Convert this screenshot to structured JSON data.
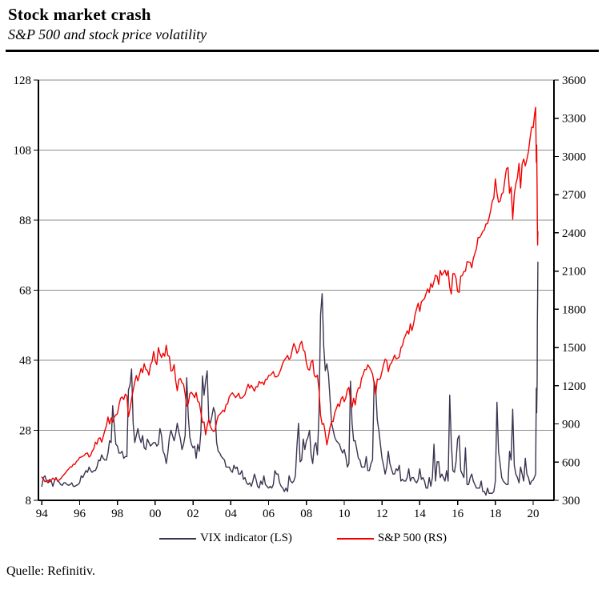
{
  "header": {
    "title": "Stock market crash",
    "subtitle": "S&P 500 and stock price volatility"
  },
  "source": "Quelle: Refinitiv.",
  "legend": [
    {
      "label": "VIX indicator (LS)",
      "color": "#3c3450"
    },
    {
      "label": "S&P 500 (RS)",
      "color": "#f20000"
    }
  ],
  "colors": {
    "grid": "#8c8c8c",
    "axis": "#000000",
    "text": "#000000",
    "background": "#ffffff"
  },
  "chart_data": {
    "type": "line",
    "title": "Stock market crash",
    "subtitle": "S&P 500 and stock price volatility",
    "grid": "horizontal",
    "legend_position": "bottom",
    "x_axis": {
      "range": [
        1993.82,
        2021.1
      ],
      "tick_years": [
        1994,
        1996,
        1998,
        2000,
        2002,
        2004,
        2006,
        2008,
        2010,
        2012,
        2014,
        2016,
        2018,
        2020
      ],
      "tick_labels": [
        "94",
        "96",
        "98",
        "00",
        "02",
        "04",
        "06",
        "08",
        "10",
        "12",
        "14",
        "16",
        "18",
        "20"
      ]
    },
    "y_axis_left": {
      "series": "VIX indicator",
      "range": [
        8,
        128
      ],
      "ticks": [
        8,
        28,
        48,
        68,
        88,
        108,
        128
      ]
    },
    "y_axis_right": {
      "series": "S&P 500",
      "range": [
        300,
        3600
      ],
      "ticks": [
        300,
        600,
        900,
        1200,
        1500,
        1800,
        2100,
        2400,
        2700,
        3000,
        3300,
        3600
      ]
    },
    "x": {
      "monthly_start": 1994,
      "monthly_count": 312,
      "extra": [
        2020.0,
        2020.08,
        2020.13,
        2020.165,
        2020.185,
        2020.21,
        2020.22,
        2020.235,
        2020.25
      ]
    },
    "series": [
      {
        "name": "VIX indicator (LS)",
        "axis": "left",
        "color": "#3c3450",
        "values": [
          12,
          14.5,
          15,
          13.5,
          13,
          14,
          13.5,
          12,
          13.5,
          14.5,
          13.5,
          13.2,
          12.5,
          12.3,
          13,
          13,
          12.5,
          12.3,
          12.5,
          13,
          12,
          12,
          12.3,
          12.5,
          13,
          15,
          14.5,
          15.5,
          16.5,
          16,
          17.5,
          16.5,
          16,
          16.5,
          16.5,
          17.5,
          19.5,
          19.3,
          21,
          20,
          19.5,
          19.5,
          21.5,
          25,
          24.5,
          35,
          29.5,
          24,
          23.5,
          21.5,
          21.5,
          22,
          20,
          20.5,
          20.5,
          39.5,
          41,
          45.5,
          30,
          24.5,
          26.5,
          28.5,
          26,
          24.5,
          26.5,
          23,
          22.5,
          25.5,
          24.5,
          23.5,
          24,
          24.5,
          24.5,
          23.5,
          24,
          28.5,
          26.5,
          22,
          21,
          18.5,
          21.5,
          26,
          28,
          26.5,
          25,
          27,
          30,
          27.5,
          25.5,
          22.5,
          24,
          26.5,
          43,
          32,
          26,
          24,
          23,
          23.5,
          20,
          24,
          22,
          27.5,
          43.5,
          38,
          42,
          45,
          31,
          30,
          32,
          34.5,
          33,
          24.5,
          22,
          21.5,
          20.5,
          20,
          19.5,
          17.5,
          17.5,
          17.5,
          16.5,
          16,
          18,
          17,
          17.5,
          15.5,
          15.5,
          16.5,
          14,
          14.5,
          13,
          12.5,
          13,
          12,
          13.5,
          15.5,
          14,
          12,
          11.5,
          13.5,
          12.5,
          15,
          12.5,
          12,
          11.5,
          12,
          11.5,
          12.5,
          16.5,
          15.5,
          15.5,
          13,
          12,
          11.5,
          10.5,
          11.5,
          10.5,
          15,
          13.5,
          13,
          13.5,
          15,
          23.5,
          30,
          19,
          19.5,
          25.5,
          22.5,
          25,
          26,
          28,
          21,
          18.5,
          23.5,
          24.5,
          21,
          33,
          61,
          67,
          52,
          45,
          47,
          44,
          37,
          30,
          28,
          26,
          25,
          24.5,
          24,
          22.5,
          21.5,
          22.5,
          20.5,
          17.5,
          18.5,
          42,
          30,
          25,
          25,
          22.5,
          20,
          19.5,
          17.5,
          17.5,
          17.5,
          20.5,
          16.5,
          16.5,
          18.5,
          19.5,
          42,
          40,
          31,
          28,
          24,
          20,
          18,
          15.5,
          17.5,
          22,
          18.5,
          17,
          15.5,
          15.5,
          17,
          16.5,
          18,
          13.5,
          14,
          13.5,
          13.5,
          14.5,
          17,
          13.5,
          14.5,
          14.5,
          13.5,
          13,
          14,
          17,
          14,
          14.5,
          13.5,
          11.5,
          11.5,
          14.5,
          12,
          14.5,
          24,
          13.5,
          19,
          19,
          14.5,
          15.5,
          14.5,
          13.5,
          16.5,
          13.5,
          38,
          24.5,
          16.5,
          16,
          19,
          25.5,
          26.5,
          16.5,
          15.5,
          14.5,
          23,
          12.5,
          12.5,
          14.5,
          15.5,
          13.5,
          12.5,
          11.5,
          11.5,
          11.5,
          13.5,
          10.5,
          10.5,
          9.5,
          11.5,
          10,
          10,
          10,
          10.5,
          13.5,
          36,
          22,
          18.5,
          14.5,
          13.5,
          13,
          12.5,
          12.5,
          22,
          19.5,
          34,
          18,
          15.5,
          14.5,
          13,
          17.5,
          15.5,
          13.5,
          20,
          15.5,
          14.5,
          12.5,
          13.5,
          13.8,
          14.8,
          15.5,
          40,
          33,
          42,
          58,
          66,
          76
        ]
      },
      {
        "name": "S&P 500 (RS)",
        "axis": "right",
        "color": "#f20000",
        "values": [
          482,
          467,
          446,
          451,
          457,
          444,
          458,
          475,
          463,
          472,
          454,
          459,
          470,
          487,
          501,
          515,
          533,
          545,
          562,
          562,
          584,
          582,
          605,
          616,
          636,
          640,
          646,
          654,
          669,
          671,
          640,
          652,
          687,
          705,
          757,
          741,
          786,
          791,
          757,
          801,
          848,
          885,
          954,
          899,
          947,
          915,
          955,
          970,
          980,
          1049,
          1102,
          1112,
          1091,
          1134,
          1121,
          957,
          1017,
          1099,
          1164,
          1229,
          1280,
          1238,
          1286,
          1335,
          1302,
          1373,
          1329,
          1320,
          1283,
          1363,
          1389,
          1469,
          1394,
          1366,
          1499,
          1452,
          1421,
          1455,
          1431,
          1518,
          1437,
          1429,
          1315,
          1320,
          1366,
          1240,
          1160,
          1249,
          1256,
          1224,
          1211,
          1134,
          1041,
          1060,
          1139,
          1148,
          1130,
          1107,
          1147,
          1077,
          1067,
          990,
          911,
          916,
          815,
          886,
          936,
          880,
          856,
          841,
          848,
          917,
          964,
          975,
          990,
          1008,
          996,
          1051,
          1058,
          1112,
          1131,
          1145,
          1126,
          1107,
          1121,
          1141,
          1102,
          1104,
          1115,
          1130,
          1174,
          1212,
          1181,
          1204,
          1181,
          1157,
          1192,
          1191,
          1234,
          1220,
          1229,
          1207,
          1249,
          1248,
          1280,
          1281,
          1295,
          1311,
          1270,
          1270,
          1277,
          1304,
          1336,
          1378,
          1401,
          1418,
          1438,
          1407,
          1421,
          1482,
          1531,
          1503,
          1455,
          1474,
          1527,
          1549,
          1481,
          1468,
          1378,
          1331,
          1323,
          1386,
          1400,
          1280,
          1267,
          1283,
          1166,
          969,
          896,
          903,
          826,
          735,
          798,
          873,
          919,
          919,
          987,
          1021,
          1057,
          1036,
          1096,
          1115,
          1074,
          1104,
          1169,
          1187,
          1089,
          1031,
          1102,
          1049,
          1141,
          1183,
          1181,
          1258,
          1286,
          1327,
          1326,
          1364,
          1345,
          1321,
          1292,
          1219,
          1131,
          1253,
          1247,
          1258,
          1312,
          1366,
          1408,
          1398,
          1310,
          1362,
          1379,
          1407,
          1441,
          1412,
          1416,
          1426,
          1498,
          1515,
          1569,
          1598,
          1631,
          1606,
          1686,
          1633,
          1682,
          1757,
          1806,
          1848,
          1783,
          1859,
          1872,
          1884,
          1924,
          1960,
          1931,
          2003,
          1972,
          2018,
          2068,
          2059,
          1995,
          2105,
          2068,
          2086,
          2107,
          2063,
          2104,
          1972,
          1920,
          2079,
          2080,
          2044,
          1940,
          1932,
          2060,
          2065,
          2097,
          2099,
          2174,
          2171,
          2168,
          2126,
          2199,
          2239,
          2279,
          2364,
          2363,
          2384,
          2412,
          2423,
          2470,
          2472,
          2519,
          2575,
          2648,
          2674,
          2824,
          2714,
          2641,
          2648,
          2705,
          2718,
          2816,
          2902,
          2914,
          2712,
          2760,
          2507,
          2704,
          2784,
          2834,
          2946,
          2752,
          2942,
          2980,
          2926,
          2977,
          3038,
          3141,
          3231,
          3226,
          3338,
          3386,
          2954,
          3090,
          2711,
          2481,
          2305,
          2410
        ]
      }
    ]
  }
}
